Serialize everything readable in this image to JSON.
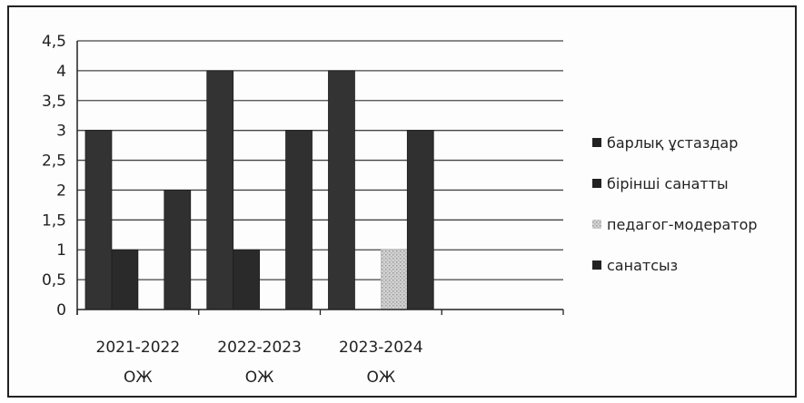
{
  "chart_data": {
    "type": "bar",
    "categories": [
      [
        "2021-2022",
        "ОЖ"
      ],
      [
        "2022-2023",
        "ОЖ"
      ],
      [
        "2023-2024",
        "ОЖ"
      ]
    ],
    "series": [
      {
        "name": "барлық ұстаздар",
        "values": [
          3,
          4,
          4
        ],
        "color": "#333333"
      },
      {
        "name": "бірінші санатты",
        "values": [
          1,
          1,
          0
        ],
        "color": "#2a2a2a"
      },
      {
        "name": "педагог-модератор",
        "values": [
          0,
          0,
          1
        ],
        "color": "#c8c8c8"
      },
      {
        "name": "санатсыз",
        "values": [
          2,
          3,
          3
        ],
        "color": "#303030"
      }
    ],
    "yticks": [
      "0",
      "0,5",
      "1",
      "1,5",
      "2",
      "2,5",
      "3",
      "3,5",
      "4",
      "4,5"
    ],
    "ylim": [
      0,
      4.5
    ],
    "grid": true,
    "legend": "right"
  }
}
